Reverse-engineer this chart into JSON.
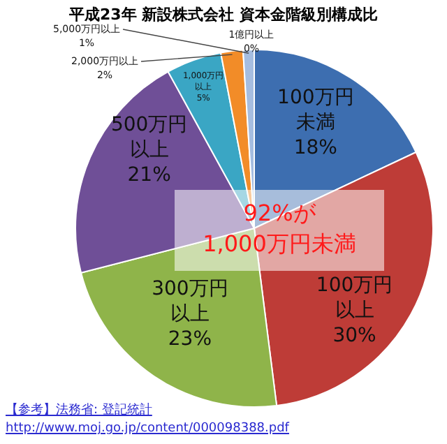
{
  "chart_data": {
    "type": "pie",
    "title": "平成23年 新設株式会社 資本金階級別構成比",
    "categories": [
      "100万円未満",
      "100万円以上",
      "300万円以上",
      "500万円以上",
      "1,000万円以上",
      "2,000万円以上",
      "5,000万円以上",
      "1億円以上"
    ],
    "values": [
      18,
      30,
      23,
      21,
      5,
      2,
      1,
      0
    ],
    "value_labels": [
      "18%",
      "30%",
      "23%",
      "21%",
      "5%",
      "2%",
      "1%",
      "0%"
    ],
    "colors": [
      "#3d6eb0",
      "#be3c37",
      "#8fb44a",
      "#6f4f97",
      "#3aa6c4",
      "#f28c28",
      "#a5bde0",
      "#d88a8a"
    ],
    "legend": false,
    "annotations": [
      "92%が\n1,000万円未満",
      "【参考】法務省: 登記統計",
      "http://www.moj.go.jp/content/000098388.pdf"
    ]
  }
}
